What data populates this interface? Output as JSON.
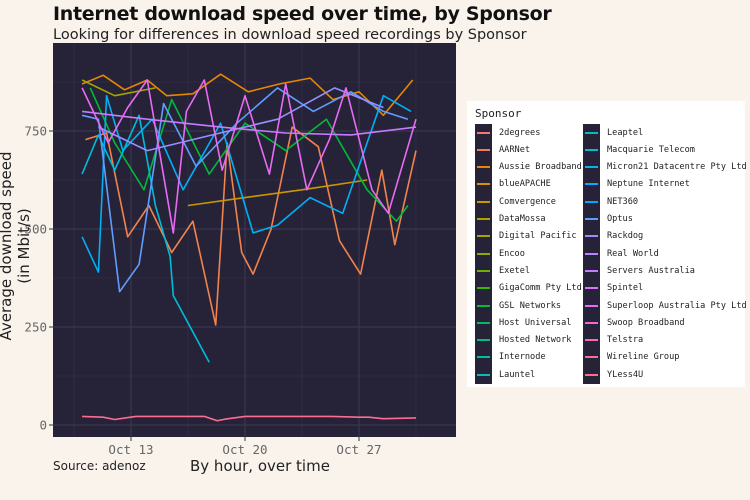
{
  "chart_data": {
    "type": "line",
    "title": "Internet download speed over time, by Sponsor",
    "subtitle": "Looking for differences in download speed recordings by Sponsor",
    "xlabel": "By hour, over time",
    "ylabel": "Average download speed (in Mbit/s)",
    "caption": "Source: adenoz",
    "x_ticks": [
      "Oct 13",
      "Oct 20",
      "Oct 27"
    ],
    "y_ticks": [
      0,
      250,
      500,
      750
    ],
    "ylim": [
      -20,
      920
    ],
    "xlim": [
      "Oct 9",
      "Oct 31"
    ],
    "grid": true,
    "legend_position": "right",
    "legend_title": "Sponsor",
    "series": [
      {
        "name": "2degrees",
        "color": "#f8766d",
        "values": []
      },
      {
        "name": "AARNet",
        "color": "#f2834c",
        "values": [
          [
            10.2,
            728
          ],
          [
            11.5,
            745
          ],
          [
            12.8,
            480
          ],
          [
            14.1,
            560
          ],
          [
            15.5,
            440
          ],
          [
            16.8,
            520
          ],
          [
            18.2,
            255
          ],
          [
            18.9,
            720
          ],
          [
            19.8,
            440
          ],
          [
            20.5,
            385
          ],
          [
            21.6,
            500
          ],
          [
            22.9,
            760
          ],
          [
            24.5,
            710
          ],
          [
            25.8,
            470
          ],
          [
            27.1,
            385
          ],
          [
            28.4,
            650
          ],
          [
            29.2,
            460
          ],
          [
            30.5,
            700
          ]
        ]
      },
      {
        "name": "Aussie Broadband",
        "color": "#e58700",
        "values": [
          [
            10.0,
            870
          ],
          [
            11.3,
            892
          ],
          [
            12.6,
            855
          ],
          [
            14.0,
            880
          ],
          [
            15.2,
            840
          ],
          [
            16.8,
            845
          ],
          [
            18.5,
            895
          ],
          [
            20.2,
            850
          ],
          [
            22.1,
            870
          ],
          [
            24.0,
            885
          ],
          [
            25.4,
            830
          ],
          [
            27.0,
            850
          ],
          [
            28.5,
            790
          ],
          [
            30.3,
            880
          ]
        ]
      },
      {
        "name": "blueAPACHE",
        "color": "#c99800",
        "values": [
          [
            16.5,
            560
          ],
          [
            20.0,
            580
          ],
          [
            23.5,
            600
          ],
          [
            27.5,
            625
          ]
        ]
      },
      {
        "name": "Comvergence",
        "color": "#c99800",
        "values": []
      },
      {
        "name": "DataMossa",
        "color": "#a3a500",
        "values": [
          [
            10.0,
            880
          ],
          [
            12.0,
            840
          ],
          [
            14.5,
            860
          ]
        ]
      },
      {
        "name": "Digital Pacific",
        "color": "#a3a500",
        "values": []
      },
      {
        "name": "Encoo",
        "color": "#6bb100",
        "values": []
      },
      {
        "name": "Exetel",
        "color": "#6bb100",
        "values": []
      },
      {
        "name": "GigaComm Pty Ltd",
        "color": "#00ba38",
        "values": []
      },
      {
        "name": "GSL Networks",
        "color": "#00ba38",
        "values": [
          [
            10.5,
            860
          ],
          [
            12.0,
            720
          ],
          [
            13.8,
            600
          ],
          [
            15.5,
            830
          ],
          [
            17.8,
            640
          ],
          [
            20.0,
            770
          ],
          [
            22.5,
            700
          ],
          [
            25.0,
            780
          ],
          [
            27.5,
            600
          ],
          [
            29.3,
            520
          ],
          [
            30.0,
            560
          ]
        ]
      },
      {
        "name": "Host Universal",
        "color": "#00bf7d",
        "values": []
      },
      {
        "name": "Hosted Network",
        "color": "#00c08b",
        "values": []
      },
      {
        "name": "Internode",
        "color": "#00c0af",
        "values": []
      },
      {
        "name": "Launtel",
        "color": "#00bcd8",
        "values": [
          [
            10.0,
            640
          ],
          [
            11.0,
            740
          ],
          [
            12.0,
            650
          ],
          [
            13.5,
            790
          ],
          [
            14.5,
            560
          ],
          [
            15.4,
            430
          ],
          [
            15.6,
            330
          ],
          [
            17.8,
            160
          ]
        ]
      },
      {
        "name": "Leaptel",
        "color": "#00bcd8",
        "values": []
      },
      {
        "name": "Macquarie Telecom",
        "color": "#00b0f6",
        "values": []
      },
      {
        "name": "Micron21 Datacentre Pty Ltd",
        "color": "#00b0f6",
        "values": [
          [
            10.0,
            480
          ],
          [
            11.0,
            390
          ],
          [
            11.5,
            840
          ],
          [
            12.5,
            700
          ],
          [
            14.3,
            780
          ],
          [
            16.2,
            600
          ],
          [
            18.5,
            770
          ],
          [
            20.5,
            490
          ],
          [
            22.0,
            510
          ],
          [
            24.0,
            580
          ],
          [
            26.0,
            540
          ],
          [
            28.5,
            840
          ],
          [
            30.2,
            800
          ]
        ]
      },
      {
        "name": "Neptune Internet",
        "color": "#00a9ff",
        "values": []
      },
      {
        "name": "NET360",
        "color": "#35a2ff",
        "values": []
      },
      {
        "name": "Optus",
        "color": "#619cff",
        "values": [
          [
            10.0,
            790
          ],
          [
            11.0,
            780
          ],
          [
            12.3,
            340
          ],
          [
            13.5,
            410
          ],
          [
            15.0,
            820
          ],
          [
            17.0,
            660
          ],
          [
            19.5,
            770
          ],
          [
            22.0,
            860
          ],
          [
            24.2,
            800
          ],
          [
            26.5,
            850
          ],
          [
            28.5,
            800
          ],
          [
            30.0,
            780
          ]
        ]
      },
      {
        "name": "Rackdog",
        "color": "#9590ff",
        "values": [
          [
            11.0,
            760
          ],
          [
            14.0,
            700
          ],
          [
            18.0,
            740
          ],
          [
            22.0,
            780
          ],
          [
            25.5,
            860
          ],
          [
            28.5,
            810
          ]
        ]
      },
      {
        "name": "Real World",
        "color": "#b983ff",
        "values": []
      },
      {
        "name": "Servers Australia",
        "color": "#c77cff",
        "values": [
          [
            10.0,
            800
          ],
          [
            14.0,
            780
          ],
          [
            18.5,
            760
          ],
          [
            22.5,
            745
          ],
          [
            26.5,
            740
          ],
          [
            30.5,
            760
          ]
        ]
      },
      {
        "name": "Spintel",
        "color": "#e76bf3",
        "values": []
      },
      {
        "name": "Superloop Australia Pty Ltd",
        "color": "#e76bf3",
        "values": [
          [
            10.0,
            860
          ],
          [
            11.6,
            720
          ],
          [
            12.8,
            810
          ],
          [
            14.0,
            880
          ],
          [
            15.6,
            490
          ],
          [
            16.4,
            800
          ],
          [
            17.5,
            880
          ],
          [
            18.6,
            650
          ],
          [
            20.0,
            840
          ],
          [
            21.5,
            640
          ],
          [
            22.5,
            870
          ],
          [
            23.8,
            600
          ],
          [
            25.2,
            730
          ],
          [
            26.2,
            860
          ],
          [
            27.8,
            600
          ],
          [
            28.8,
            540
          ],
          [
            30.5,
            780
          ]
        ]
      },
      {
        "name": "Swoop Broadband",
        "color": "#fa62db",
        "values": []
      },
      {
        "name": "Telstra",
        "color": "#ff62bc",
        "values": []
      },
      {
        "name": "Wireline Group",
        "color": "#ff6c91",
        "values": [
          [
            10.0,
            22
          ],
          [
            11.3,
            20
          ],
          [
            12.0,
            14
          ],
          [
            13.3,
            22
          ],
          [
            14.6,
            22
          ],
          [
            15.5,
            22
          ],
          [
            17.5,
            22
          ],
          [
            18.3,
            11
          ],
          [
            18.8,
            15
          ],
          [
            20.0,
            22
          ],
          [
            22.6,
            22
          ],
          [
            25.3,
            22
          ],
          [
            27.0,
            20
          ],
          [
            27.6,
            20
          ],
          [
            28.5,
            16
          ],
          [
            30.5,
            18
          ]
        ]
      },
      {
        "name": "YLess4U",
        "color": "#f8766d",
        "values": []
      }
    ]
  },
  "legend": {
    "title": "Sponsor",
    "col1": [
      {
        "label": "2degrees",
        "color": "#f8766d"
      },
      {
        "label": "AARNet",
        "color": "#ef7f52"
      },
      {
        "label": "Aussie Broadband",
        "color": "#e58700"
      },
      {
        "label": "blueAPACHE",
        "color": "#d88f00"
      },
      {
        "label": "Comvergence",
        "color": "#c99800"
      },
      {
        "label": "DataMossa",
        "color": "#b79f00"
      },
      {
        "label": "Digital Pacific",
        "color": "#a3a500"
      },
      {
        "label": "Encoo",
        "color": "#8eab00"
      },
      {
        "label": "Exetel",
        "color": "#6bb100"
      },
      {
        "label": "GigaComm Pty Ltd",
        "color": "#39b600"
      },
      {
        "label": "GSL Networks",
        "color": "#00ba38"
      },
      {
        "label": "Host Universal",
        "color": "#00bc59"
      },
      {
        "label": "Hosted Network",
        "color": "#00bf7d"
      },
      {
        "label": "Internode",
        "color": "#00c097"
      },
      {
        "label": "Launtel",
        "color": "#00c0af"
      }
    ],
    "col2": [
      {
        "label": "Leaptel",
        "color": "#00bdc4"
      },
      {
        "label": "Macquarie Telecom",
        "color": "#00bcd8"
      },
      {
        "label": "Micron21 Datacentre Pty Ltd",
        "color": "#00b6eb"
      },
      {
        "label": "Neptune Internet",
        "color": "#00b0f6"
      },
      {
        "label": "NET360",
        "color": "#00a9ff"
      },
      {
        "label": "Optus",
        "color": "#619cff"
      },
      {
        "label": "Rackdog",
        "color": "#9590ff"
      },
      {
        "label": "Real World",
        "color": "#b983ff"
      },
      {
        "label": "Servers Australia",
        "color": "#c77cff"
      },
      {
        "label": "Spintel",
        "color": "#d973fc"
      },
      {
        "label": "Superloop Australia Pty Ltd",
        "color": "#e76bf3"
      },
      {
        "label": "Swoop Broadband",
        "color": "#fa62db"
      },
      {
        "label": "Telstra",
        "color": "#ff62bc"
      },
      {
        "label": "Wireline Group",
        "color": "#ff6a98"
      },
      {
        "label": "YLess4U",
        "color": "#fc717f"
      }
    ]
  },
  "colors": {
    "page_background": "#faf3ec",
    "panel_background": "#262339",
    "grid_major": "#3c3a52",
    "grid_minor": "#302d45"
  }
}
